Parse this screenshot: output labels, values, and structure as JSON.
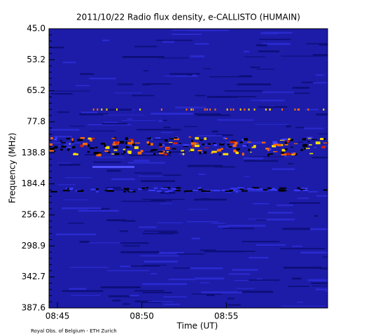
{
  "chart_data": {
    "type": "spectrogram",
    "title": "2011/10/22  Radio flux density, e-CALLISTO (HUMAIN)",
    "x_label": "Time (UT)",
    "y_label": "Frequency (MHz)",
    "xlim": [
      524.5,
      541
    ],
    "xticks": [
      {
        "value": 525,
        "label": "08:45"
      },
      {
        "value": 530,
        "label": "08:50"
      },
      {
        "value": 535,
        "label": "08:55"
      }
    ],
    "y_tick_labels": [
      "45.0",
      "53.2",
      "65.2",
      "77.8",
      "138.8",
      "184.4",
      "256.2",
      "298.9",
      "342.7",
      "387.6"
    ],
    "credit": "Royal Obs. of Belgium - ETH Zurich"
  }
}
